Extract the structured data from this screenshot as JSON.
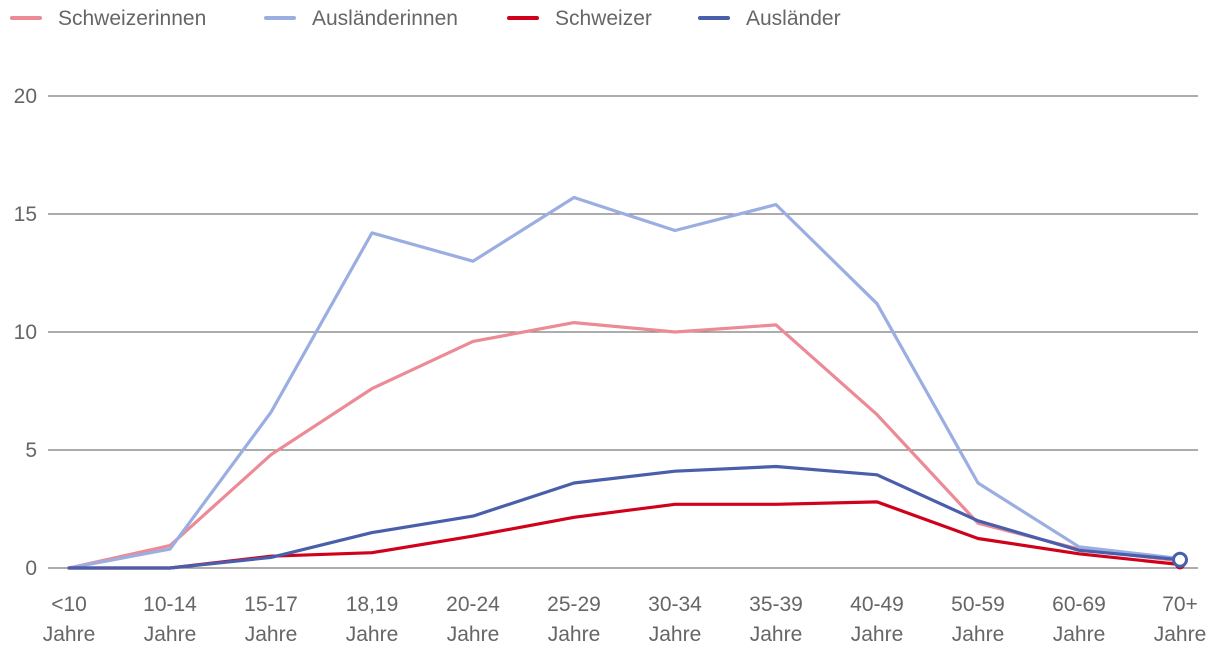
{
  "chart_data": {
    "type": "line",
    "title": "",
    "xlabel": "",
    "ylabel": "",
    "ylim": [
      0,
      20
    ],
    "yticks": [
      0,
      5,
      10,
      15,
      20
    ],
    "grid": true,
    "legend_position": "top-left",
    "categories": [
      [
        "<10",
        "Jahre"
      ],
      [
        "10-14",
        "Jahre"
      ],
      [
        "15-17",
        "Jahre"
      ],
      [
        "18,19",
        "Jahre"
      ],
      [
        "20-24",
        "Jahre"
      ],
      [
        "25-29",
        "Jahre"
      ],
      [
        "30-34",
        "Jahre"
      ],
      [
        "35-39",
        "Jahre"
      ],
      [
        "40-49",
        "Jahre"
      ],
      [
        "50-59",
        "Jahre"
      ],
      [
        "60-69",
        "Jahre"
      ],
      [
        "70+",
        "Jahre"
      ]
    ],
    "series": [
      {
        "name": "Schweizerinnen",
        "color": "#ec8a96",
        "values": [
          0.0,
          0.95,
          4.8,
          7.6,
          9.6,
          10.4,
          10.0,
          10.3,
          6.5,
          1.9,
          0.8,
          0.3
        ]
      },
      {
        "name": "Ausländerinnen",
        "color": "#9aaee2",
        "values": [
          0.0,
          0.8,
          6.6,
          14.2,
          13.0,
          15.7,
          14.3,
          15.4,
          11.2,
          3.6,
          0.9,
          0.4
        ]
      },
      {
        "name": "Schweizer",
        "color": "#d0021b",
        "values": [
          0.0,
          0.0,
          0.5,
          0.65,
          1.35,
          2.15,
          2.7,
          2.7,
          2.8,
          1.25,
          0.6,
          0.15
        ]
      },
      {
        "name": "Ausländer",
        "color": "#4a5fac",
        "values": [
          0.0,
          0.0,
          0.45,
          1.5,
          2.2,
          3.6,
          4.1,
          4.3,
          3.95,
          2.0,
          0.75,
          0.35
        ]
      }
    ]
  }
}
